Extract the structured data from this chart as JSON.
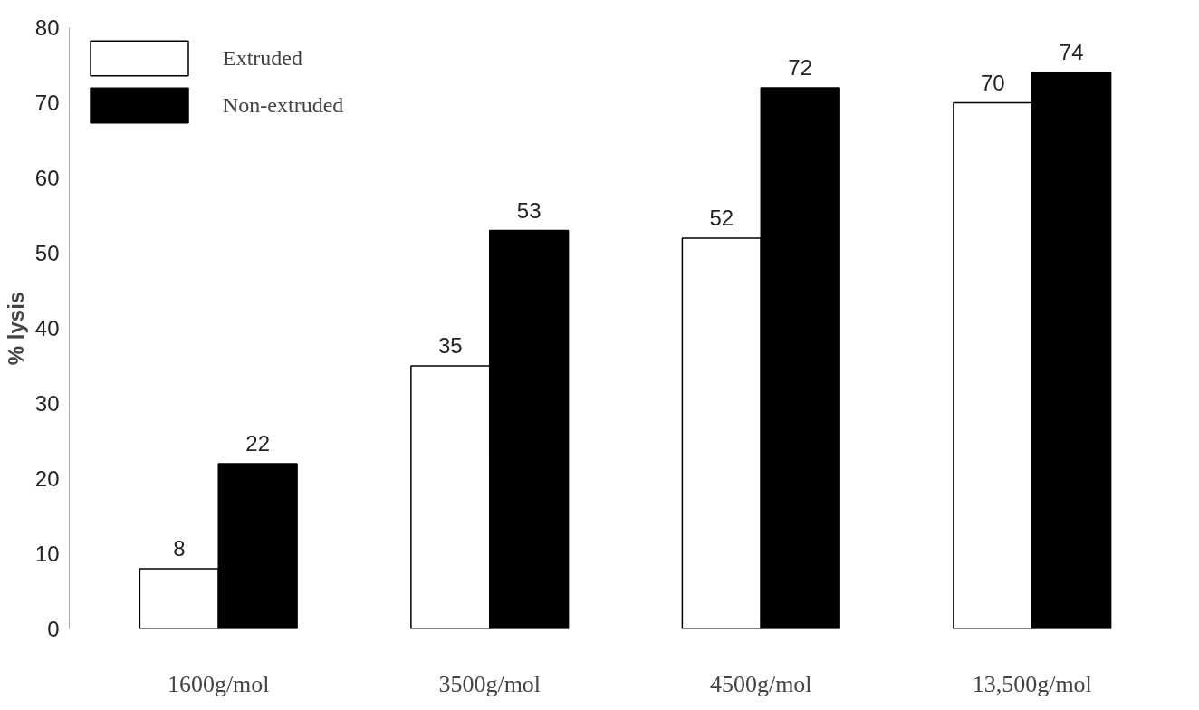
{
  "chart_data": {
    "type": "bar",
    "ylabel": "% lysis",
    "categories": [
      "1600g/mol",
      "3500g/mol",
      "4500g/mol",
      "13,500g/mol"
    ],
    "series": [
      {
        "name": "Extruded",
        "color": "#ffffff",
        "values": [
          8,
          35,
          52,
          70
        ]
      },
      {
        "name": "Non-extruded",
        "color": "#000000",
        "values": [
          22,
          53,
          72,
          74
        ]
      }
    ],
    "ylim": [
      0,
      80
    ],
    "yticks": [
      0,
      10,
      20,
      30,
      40,
      50,
      60,
      70,
      80
    ],
    "grid": false,
    "legend": "top left",
    "data_labels": true
  }
}
